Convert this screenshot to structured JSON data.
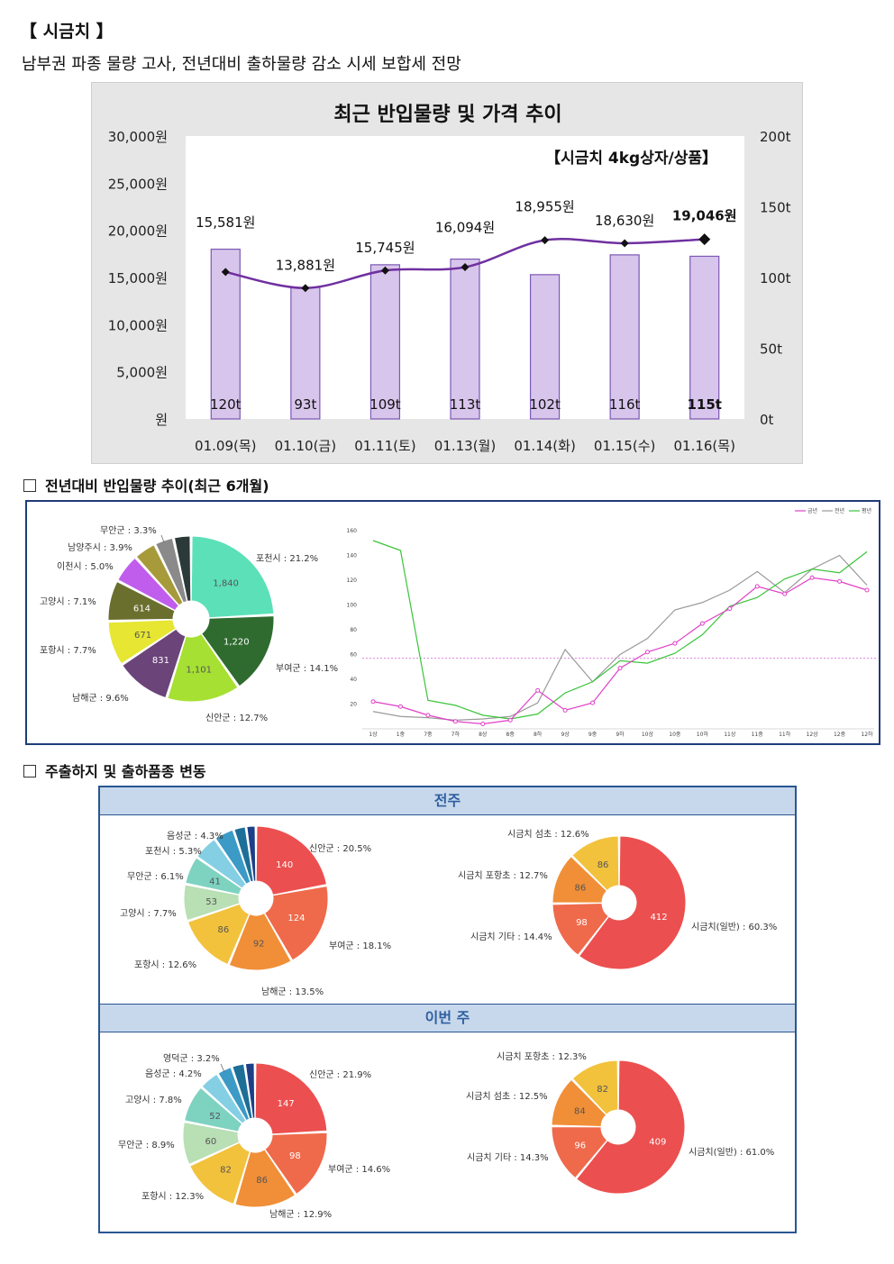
{
  "header": {
    "title": "【 시금치 】",
    "summary": "남부권 파종 물량 고사, 전년대비 출하물량 감소 시세 보합세 전망"
  },
  "chart_data": [
    {
      "type": "bar+line",
      "title": "최근 반입물량 및 가격 추이",
      "annotation": "【시금치 4kg상자/상품】",
      "categories": [
        "01.09(목)",
        "01.10(금)",
        "01.11(토)",
        "01.13(월)",
        "01.14(화)",
        "01.15(수)",
        "01.16(목)"
      ],
      "bar_series": {
        "name": "반입물량",
        "unit": "t",
        "values": [
          120,
          93,
          109,
          113,
          102,
          116,
          115
        ],
        "labels": [
          "120t",
          "93t",
          "109t",
          "113t",
          "102t",
          "116t",
          "115t"
        ]
      },
      "line_series": {
        "name": "가격",
        "unit": "원",
        "values": [
          15581,
          13881,
          15745,
          16094,
          18955,
          18630,
          19046
        ],
        "labels": [
          "15,581원",
          "13,881원",
          "15,745원",
          "16,094원",
          "18,955원",
          "18,630원",
          "19,046원"
        ]
      },
      "y_left": {
        "ylim": [
          0,
          30000
        ],
        "ticks": [
          "원",
          "5,000원",
          "10,000원",
          "15,000원",
          "20,000원",
          "25,000원",
          "30,000원"
        ]
      },
      "y_right": {
        "ylim": [
          0,
          200
        ],
        "ticks": [
          "0t",
          "50t",
          "100t",
          "150t",
          "200t"
        ]
      },
      "colors": {
        "bar": "#d8c5ec",
        "bar_border": "#7b58b4",
        "line": "#7030a0",
        "marker": "#111111",
        "plot_bg": "#ffffff",
        "panel_bg": "#e6e6e6"
      }
    },
    {
      "type": "pie",
      "title": "전년대비 반입물량 추이(최근 6개월)",
      "slices": [
        {
          "label": "포천시 : 21.2%",
          "value": 1840,
          "pct": 21.2,
          "color": "#5ce0b8",
          "show": "1,840",
          "tc": "#555555"
        },
        {
          "label": "부여군 : 14.1%",
          "value": 1220,
          "pct": 14.1,
          "color": "#2f6b2f",
          "show": "1,220",
          "tc": "#ffffff"
        },
        {
          "label": "신안군 : 12.7%",
          "value": 1101,
          "pct": 12.7,
          "color": "#a6e033",
          "show": "1,101",
          "tc": "#555555"
        },
        {
          "label": "남해군 : 9.6%",
          "value": 831,
          "pct": 9.6,
          "color": "#6b4479",
          "show": "831",
          "tc": "#ffffff"
        },
        {
          "label": "포항시 : 7.7%",
          "value": 671,
          "pct": 7.7,
          "color": "#e6e633",
          "show": "671",
          "tc": "#555555"
        },
        {
          "label": "고양시 : 7.1%",
          "value": 614,
          "pct": 7.1,
          "color": "#6b6f2e",
          "show": "614",
          "tc": "#ffffff"
        },
        {
          "label": "이천시 : 5.0%",
          "value": 434,
          "pct": 5.0,
          "color": "#c15ded",
          "show": "",
          "tc": "#ffffff"
        },
        {
          "label": "남양주시 : 3.9%",
          "value": 339,
          "pct": 3.9,
          "color": "#a79a3b",
          "show": "",
          "tc": "#ffffff"
        },
        {
          "label": "무안군 : 3.3%",
          "value": 287,
          "pct": 3.3,
          "color": "#8a8a8a",
          "show": "",
          "tc": "#ffffff"
        },
        {
          "label": "",
          "value": 260,
          "pct": 3.0,
          "color": "#2b3a38",
          "show": "",
          "tc": "#ffffff"
        }
      ]
    },
    {
      "type": "line",
      "legend": [
        "금년",
        "전년",
        "평년"
      ],
      "legend_position": "top-right",
      "categories": [
        "1상",
        "1중",
        "7중",
        "7하",
        "8상",
        "8중",
        "8하",
        "9상",
        "9중",
        "9하",
        "10상",
        "10중",
        "10하",
        "11상",
        "11중",
        "11하",
        "12상",
        "12중",
        "12하"
      ],
      "ylim": [
        0,
        160
      ],
      "yticks": [
        20,
        40,
        60,
        80,
        100,
        120,
        140,
        160
      ],
      "reference_line": 57,
      "series": [
        {
          "name": "금년",
          "color": "#e040c8",
          "marker": true,
          "values": [
            22,
            18,
            11,
            6,
            4,
            7,
            31,
            15,
            21,
            49,
            62,
            69,
            85,
            97,
            115,
            109,
            122,
            119,
            112
          ]
        },
        {
          "name": "전년",
          "color": "#9a9a9a",
          "marker": false,
          "values": [
            14,
            10,
            9,
            7,
            8,
            10,
            21,
            64,
            38,
            60,
            73,
            96,
            102,
            112,
            127,
            110,
            129,
            140,
            116
          ]
        },
        {
          "name": "평년",
          "color": "#3ac43a",
          "marker": false,
          "values": [
            152,
            144,
            23,
            19,
            11,
            8,
            12,
            29,
            38,
            55,
            53,
            61,
            76,
            99,
            106,
            121,
            129,
            126,
            143
          ]
        }
      ],
      "colors": {
        "reference": "#e080e0"
      }
    },
    {
      "type": "pie",
      "group": "전주",
      "slices": [
        {
          "label": "신안군 : 20.5%",
          "value": 140,
          "pct": 20.5,
          "color": "#ec4f4f",
          "show": "140",
          "tc": "#ffffff"
        },
        {
          "label": "부여군 : 18.1%",
          "value": 124,
          "pct": 18.1,
          "color": "#ef6a4b",
          "show": "124",
          "tc": "#ffffff"
        },
        {
          "label": "남해군 : 13.5%",
          "value": 92,
          "pct": 13.5,
          "color": "#f08f38",
          "show": "92",
          "tc": "#555555"
        },
        {
          "label": "포항시 : 12.6%",
          "value": 86,
          "pct": 12.6,
          "color": "#f2c23d",
          "show": "86",
          "tc": "#555555"
        },
        {
          "label": "고양시 : 7.7%",
          "value": 53,
          "pct": 7.7,
          "color": "#b9dfb4",
          "show": "53",
          "tc": "#555555"
        },
        {
          "label": "무안군 : 6.1%",
          "value": 41,
          "pct": 6.1,
          "color": "#7ed2c0",
          "show": "41",
          "tc": "#555555"
        },
        {
          "label": "포천시 : 5.3%",
          "value": 36,
          "pct": 5.3,
          "color": "#84cfe3",
          "show": "",
          "tc": "#555555"
        },
        {
          "label": "음성군 : 4.3%",
          "value": 29,
          "pct": 4.3,
          "color": "#3c9ac6",
          "show": "",
          "tc": "#555555"
        },
        {
          "label": "",
          "value": 18,
          "pct": 2.6,
          "color": "#1d6f97",
          "show": "",
          "tc": "#555555"
        },
        {
          "label": "",
          "value": 14,
          "pct": 2.0,
          "color": "#1d3f88",
          "show": "",
          "tc": "#555555"
        }
      ]
    },
    {
      "type": "pie",
      "group": "전주",
      "slices": [
        {
          "label": "시금치(일반) : 60.3%",
          "value": 412,
          "pct": 60.3,
          "color": "#ec4f4f",
          "show": "412",
          "tc": "#ffffff"
        },
        {
          "label": "시금치 기타 : 14.4%",
          "value": 98,
          "pct": 14.4,
          "color": "#ef6a4b",
          "show": "98",
          "tc": "#ffffff"
        },
        {
          "label": "시금치 포항초 : 12.7%",
          "value": 86,
          "pct": 12.7,
          "color": "#f08f38",
          "show": "86",
          "tc": "#555555"
        },
        {
          "label": "시금치 섬초 : 12.6%",
          "value": 86,
          "pct": 12.6,
          "color": "#f2c23d",
          "show": "86",
          "tc": "#555555"
        }
      ]
    },
    {
      "type": "pie",
      "group": "이번 주",
      "slices": [
        {
          "label": "신안군 : 21.9%",
          "value": 147,
          "pct": 21.9,
          "color": "#ec4f4f",
          "show": "147",
          "tc": "#ffffff"
        },
        {
          "label": "부여군 : 14.6%",
          "value": 98,
          "pct": 14.6,
          "color": "#ef6a4b",
          "show": "98",
          "tc": "#ffffff"
        },
        {
          "label": "남해군 : 12.9%",
          "value": 86,
          "pct": 12.9,
          "color": "#f08f38",
          "show": "86",
          "tc": "#555555"
        },
        {
          "label": "포항시 : 12.3%",
          "value": 82,
          "pct": 12.3,
          "color": "#f2c23d",
          "show": "82",
          "tc": "#555555"
        },
        {
          "label": "무안군 : 8.9%",
          "value": 60,
          "pct": 8.9,
          "color": "#b9dfb4",
          "show": "60",
          "tc": "#555555"
        },
        {
          "label": "고양시 : 7.8%",
          "value": 52,
          "pct": 7.8,
          "color": "#7ed2c0",
          "show": "52",
          "tc": "#555555"
        },
        {
          "label": "음성군 : 4.2%",
          "value": 28,
          "pct": 4.2,
          "color": "#84cfe3",
          "show": "",
          "tc": "#555555"
        },
        {
          "label": "영덕군 : 3.2%",
          "value": 21,
          "pct": 3.2,
          "color": "#3c9ac6",
          "show": "",
          "tc": "#555555"
        },
        {
          "label": "",
          "value": 18,
          "pct": 2.7,
          "color": "#1d6f97",
          "show": "",
          "tc": "#555555"
        },
        {
          "label": "",
          "value": 14,
          "pct": 2.1,
          "color": "#1d3f88",
          "show": "",
          "tc": "#555555"
        }
      ]
    },
    {
      "type": "pie",
      "group": "이번 주",
      "slices": [
        {
          "label": "시금치(일반) : 61.0%",
          "value": 409,
          "pct": 61.0,
          "color": "#ec4f4f",
          "show": "409",
          "tc": "#ffffff"
        },
        {
          "label": "시금치 기타 : 14.3%",
          "value": 96,
          "pct": 14.3,
          "color": "#ef6a4b",
          "show": "96",
          "tc": "#ffffff"
        },
        {
          "label": "시금치 섬초 : 12.5%",
          "value": 84,
          "pct": 12.5,
          "color": "#f08f38",
          "show": "84",
          "tc": "#555555"
        },
        {
          "label": "시금치 포항초 : 12.3%",
          "value": 82,
          "pct": 12.3,
          "color": "#f2c23d",
          "show": "82",
          "tc": "#555555"
        }
      ]
    }
  ],
  "section1": {
    "title": "전년대비 반입물량 추이(최근 6개월)"
  },
  "section2": {
    "title": "주출하지 및 출하품종 변동",
    "prev_week": "전주",
    "this_week": "이번 주"
  }
}
